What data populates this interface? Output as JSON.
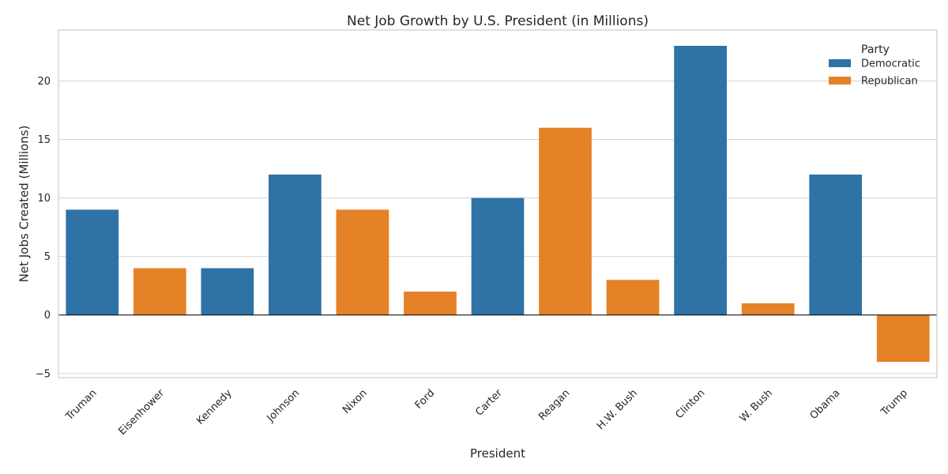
{
  "chart_data": {
    "type": "bar",
    "title": "Net Job Growth by U.S. President (in Millions)",
    "xlabel": "President",
    "ylabel": "Net Jobs Created (Millions)",
    "categories": [
      "Truman",
      "Eisenhower",
      "Kennedy",
      "Johnson",
      "Nixon",
      "Ford",
      "Carter",
      "Reagan",
      "H.W. Bush",
      "Clinton",
      "W. Bush",
      "Obama",
      "Trump"
    ],
    "values": [
      9,
      4,
      4,
      12,
      9,
      2,
      10,
      16,
      3,
      23,
      1,
      12,
      -4
    ],
    "party": [
      "Democratic",
      "Republican",
      "Democratic",
      "Democratic",
      "Republican",
      "Republican",
      "Democratic",
      "Republican",
      "Republican",
      "Democratic",
      "Republican",
      "Democratic",
      "Republican"
    ],
    "ylim": [
      -5.35,
      24.35
    ],
    "yticks": [
      -5,
      0,
      5,
      10,
      15,
      20
    ],
    "ytick_labels": [
      "−5",
      "0",
      "5",
      "10",
      "15",
      "20"
    ],
    "grid": "horizontal",
    "legend": {
      "title": "Party",
      "placement": "top-right",
      "entries": [
        {
          "name": "Democratic",
          "color": "#2f72a6"
        },
        {
          "name": "Republican",
          "color": "#e58126"
        }
      ]
    },
    "colors": {
      "Democratic": "#2f72a6",
      "Republican": "#e58126"
    }
  }
}
